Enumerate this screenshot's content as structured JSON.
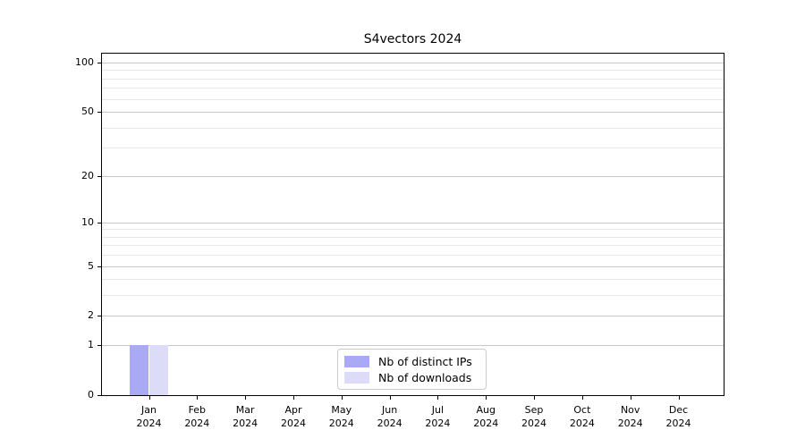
{
  "title": "S4vectors 2024",
  "legend": {
    "items": [
      {
        "label": "Nb of distinct IPs",
        "color": "#a9a9f6"
      },
      {
        "label": "Nb of downloads",
        "color": "#dcdcf8"
      }
    ]
  },
  "chart_data": {
    "type": "bar",
    "title": "S4vectors 2024",
    "categories": [
      "Jan 2024",
      "Feb 2024",
      "Mar 2024",
      "Apr 2024",
      "May 2024",
      "Jun 2024",
      "Jul 2024",
      "Aug 2024",
      "Sep 2024",
      "Oct 2024",
      "Nov 2024",
      "Dec 2024"
    ],
    "months": [
      "Jan",
      "Feb",
      "Mar",
      "Apr",
      "May",
      "Jun",
      "Jul",
      "Aug",
      "Sep",
      "Oct",
      "Nov",
      "Dec"
    ],
    "year": "2024",
    "series": [
      {
        "name": "Nb of distinct IPs",
        "color": "#a9a9f6",
        "values": [
          1,
          0,
          0,
          0,
          0,
          0,
          0,
          0,
          0,
          0,
          0,
          0
        ]
      },
      {
        "name": "Nb of downloads",
        "color": "#dcdcf8",
        "values": [
          1,
          0,
          0,
          0,
          0,
          0,
          0,
          0,
          0,
          0,
          0,
          0
        ]
      }
    ],
    "yscale": "log1p",
    "ylim": [
      0,
      115
    ],
    "y_ticks": [
      0,
      1,
      2,
      5,
      10,
      20,
      50,
      100
    ],
    "y_minor_gridlines": [
      3,
      4,
      6,
      7,
      8,
      9,
      30,
      40,
      60,
      70,
      80,
      90
    ],
    "grid": "horizontal",
    "legend_position": "lower-center-inside"
  }
}
